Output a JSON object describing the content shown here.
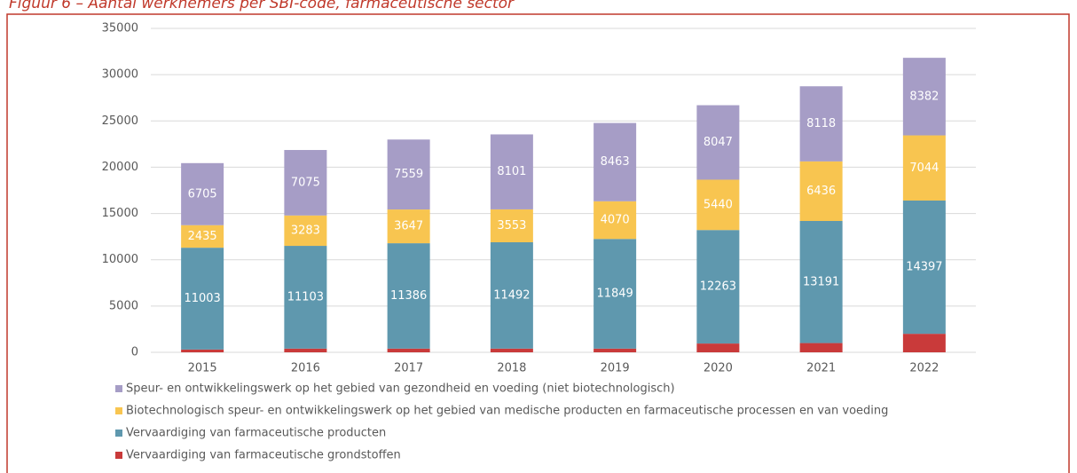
{
  "chart_data": {
    "type": "stacked_bar",
    "title": "Figuur 6 – Aantal werknemers per SBI-code, farmaceutische sector",
    "categories": [
      "2015",
      "2016",
      "2017",
      "2018",
      "2019",
      "2020",
      "2021",
      "2022"
    ],
    "series": [
      {
        "name": "Vervaardiging van farmaceutische grondstoffen",
        "color": "#c93a3a",
        "show_labels": false,
        "values": [
          300,
          400,
          400,
          400,
          400,
          950,
          1000,
          2000
        ]
      },
      {
        "name": "Vervaardiging van farmaceutische producten",
        "color": "#5f98ae",
        "show_labels": true,
        "values": [
          11003,
          11103,
          11386,
          11492,
          11849,
          12263,
          13191,
          14397
        ]
      },
      {
        "name": "Biotechnologisch speur- en ontwikkelingswerk op het gebied van medische producten en farmaceutische processen en van voeding",
        "color": "#f8c550",
        "show_labels": true,
        "values": [
          2435,
          3283,
          3647,
          3553,
          4070,
          5440,
          6436,
          7044
        ]
      },
      {
        "name": "Speur- en ontwikkelingswerk op het gebied van gezondheid en voeding (niet biotechnologisch)",
        "color": "#a69dc6",
        "show_labels": true,
        "values": [
          6705,
          7075,
          7559,
          8101,
          8463,
          8047,
          8118,
          8382
        ]
      }
    ],
    "ylim": [
      0,
      35000
    ],
    "yticks": [
      0,
      5000,
      10000,
      15000,
      20000,
      25000,
      30000,
      35000
    ],
    "grid": true
  }
}
